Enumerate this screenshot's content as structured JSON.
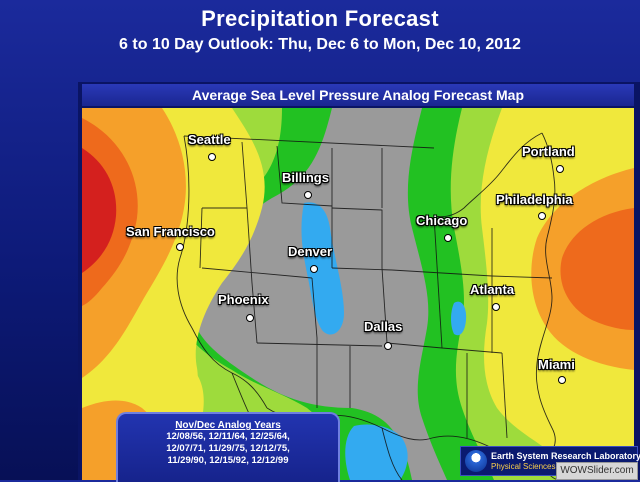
{
  "header": {
    "title": "Precipitation Forecast",
    "subtitle": "6 to 10 Day Outlook: Thu, Dec 6 to Mon, Dec 10, 2012"
  },
  "map": {
    "title": "Average Sea Level Pressure Analog Forecast Map",
    "colors": {
      "low_blue": "#33aaf0",
      "gray": "#999999",
      "green": "#22c122",
      "light_green": "#9edb3c",
      "yellow": "#f0e83c",
      "orange": "#f5a02a",
      "dark_orange": "#ee6a1c",
      "red": "#d4201e"
    },
    "cities": [
      {
        "name": "Seattle"
      },
      {
        "name": "Billings"
      },
      {
        "name": "San Francisco"
      },
      {
        "name": "Denver"
      },
      {
        "name": "Phoenix"
      },
      {
        "name": "Dallas"
      },
      {
        "name": "Chicago"
      },
      {
        "name": "Portland"
      },
      {
        "name": "Philadelphia"
      },
      {
        "name": "Atlanta"
      },
      {
        "name": "Miami"
      }
    ]
  },
  "analog_years": {
    "title": "Nov/Dec Analog Years",
    "lines": [
      "12/08/56, 12/11/64, 12/25/64,",
      "12/07/71, 11/29/75, 12/12/75,",
      "11/29/90, 12/15/92, 12/12/99"
    ]
  },
  "footer": {
    "lab_name": "Earth System Research Laboratory",
    "division": "Physical Sciences Division",
    "watermark": "WOWSlider.com"
  }
}
